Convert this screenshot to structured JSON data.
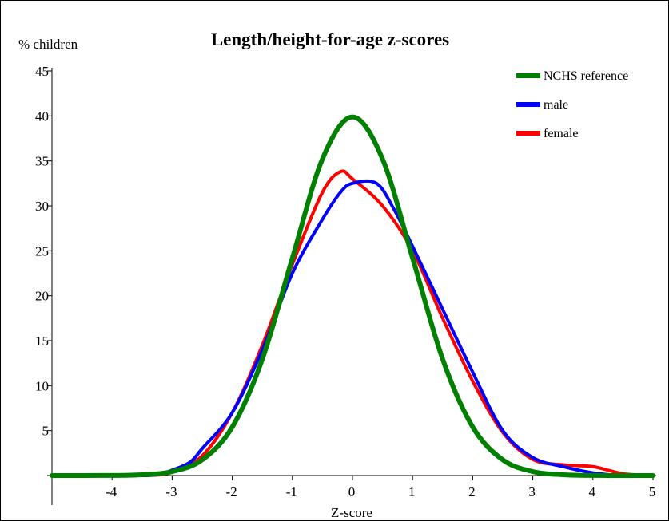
{
  "chart_data": {
    "type": "line",
    "title": "Length/height-for-age z-scores",
    "ylabel": "% children",
    "xlabel": "Z-score",
    "xlim": [
      -5,
      5
    ],
    "ylim": [
      0,
      45
    ],
    "x_ticks": [
      -4,
      -3,
      -2,
      -1,
      0,
      1,
      2,
      3,
      4,
      5
    ],
    "y_ticks": [
      5,
      10,
      15,
      20,
      25,
      30,
      35,
      40,
      45
    ],
    "grid": false,
    "legend_position": "top-right",
    "series": [
      {
        "name": "NCHS reference",
        "color": "#008000",
        "x": [
          -5,
          -4,
          -3.5,
          -3,
          -2.5,
          -2,
          -1.5,
          -1,
          -0.5,
          0,
          0.5,
          1,
          1.5,
          2,
          2.5,
          3,
          3.5,
          4,
          5
        ],
        "y": [
          0,
          0.01,
          0.09,
          0.44,
          1.75,
          5.4,
          12.95,
          24.2,
          35.21,
          39.89,
          35.21,
          24.2,
          12.95,
          5.4,
          1.75,
          0.44,
          0.09,
          0.01,
          0
        ]
      },
      {
        "name": "male",
        "color": "#0000ff",
        "x": [
          -5,
          -3.5,
          -3.2,
          -3,
          -2.7,
          -2.5,
          -2,
          -1.5,
          -1,
          -0.5,
          -0.2,
          0,
          0.4,
          0.7,
          1,
          1.5,
          2,
          2.5,
          3,
          3.5,
          4,
          4.5,
          5
        ],
        "y": [
          0,
          0,
          0.2,
          0.6,
          1.5,
          3,
          7,
          14,
          22.5,
          28.5,
          31.5,
          32.5,
          32.5,
          29.5,
          25.5,
          18.5,
          11.5,
          5,
          2,
          1,
          0.3,
          0,
          0
        ]
      },
      {
        "name": "female",
        "color": "#ff0000",
        "x": [
          -5,
          -3.5,
          -3,
          -2.5,
          -2,
          -1.5,
          -1,
          -0.5,
          -0.2,
          0,
          0.5,
          1,
          1.5,
          2,
          2.5,
          3,
          3.5,
          4,
          4.5,
          5
        ],
        "y": [
          0,
          0,
          0.4,
          2.2,
          7,
          14.5,
          23.5,
          31.5,
          33.8,
          33,
          30,
          25,
          17.5,
          10.5,
          4.8,
          1.8,
          1.2,
          1,
          0.2,
          0
        ]
      }
    ]
  }
}
